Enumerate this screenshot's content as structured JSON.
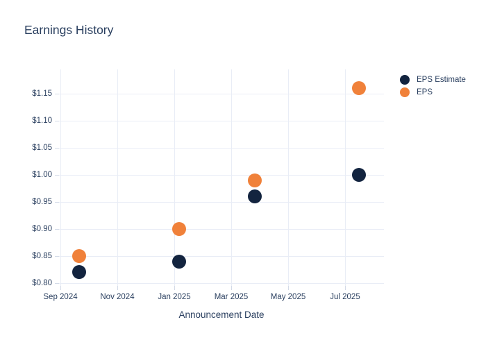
{
  "chart_data": {
    "type": "scatter",
    "title": "Earnings History",
    "xlabel": "Announcement Date",
    "ylabel": "",
    "grid": true,
    "legend_position": "outside-top-right",
    "x_ticks": [
      "Sep 2024",
      "Nov 2024",
      "Jan 2025",
      "Mar 2025",
      "May 2025",
      "Jul 2025"
    ],
    "y_tick_prefix": "$",
    "y_ticks": [
      0.8,
      0.85,
      0.9,
      0.95,
      1.0,
      1.05,
      1.1,
      1.15
    ],
    "ylim": [
      0.795,
      1.195
    ],
    "series": [
      {
        "name": "EPS Estimate",
        "color": "#13243f",
        "points": [
          {
            "date": "2024-09-21",
            "value": 0.82
          },
          {
            "date": "2025-01-06",
            "value": 0.84
          },
          {
            "date": "2025-03-26",
            "value": 0.96
          },
          {
            "date": "2025-07-16",
            "value": 1.0
          }
        ]
      },
      {
        "name": "EPS",
        "color": "#f0813a",
        "points": [
          {
            "date": "2024-09-21",
            "value": 0.85
          },
          {
            "date": "2025-01-06",
            "value": 0.9
          },
          {
            "date": "2025-03-26",
            "value": 0.99
          },
          {
            "date": "2025-07-16",
            "value": 1.16
          }
        ]
      }
    ]
  },
  "colors": {
    "text": "#2a3f5f",
    "grid": "#e9edf6",
    "tick": "#d4dbe8",
    "background": "#ffffff"
  }
}
